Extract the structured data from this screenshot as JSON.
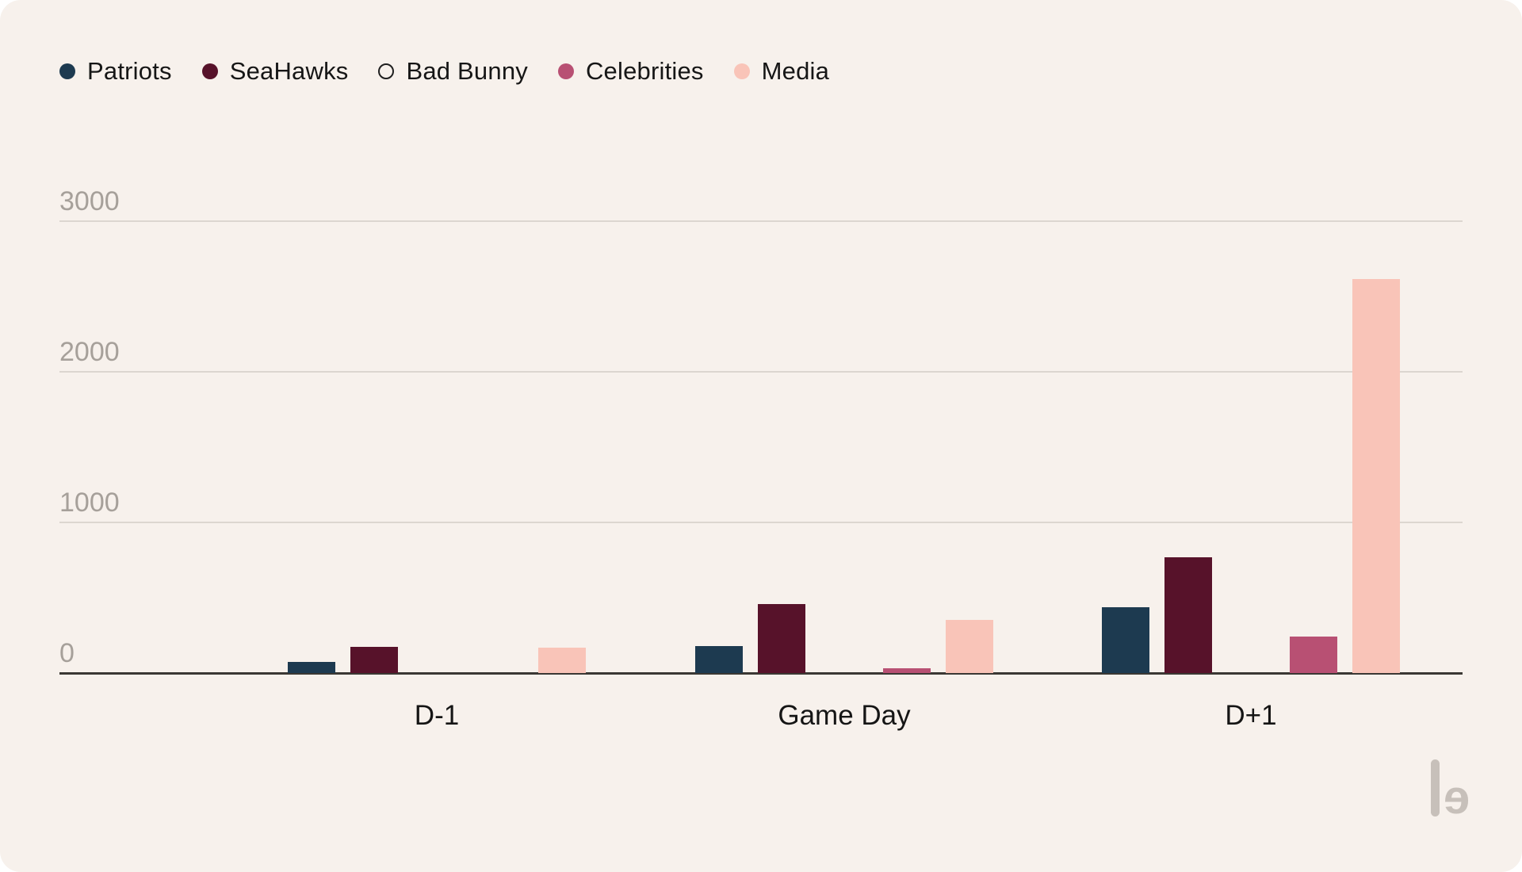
{
  "theme": {
    "background": "#f7f1ec",
    "gridline": "#dcd6d0",
    "axis": "#3b3834",
    "y_tick_color": "#a6a09a",
    "x_label_color": "#151515",
    "legend_text_color": "#161616",
    "logo_color": "#c7c0ba"
  },
  "legend": {
    "items": [
      {
        "label": "Patriots",
        "color": "#1d3a50",
        "marker": "filled"
      },
      {
        "label": "SeaHawks",
        "color": "#57122a",
        "marker": "filled"
      },
      {
        "label": "Bad Bunny",
        "color": "#1f1f1f",
        "marker": "hollow"
      },
      {
        "label": "Celebrities",
        "color": "#b85073",
        "marker": "filled"
      },
      {
        "label": "Media",
        "color": "#f9c4b8",
        "marker": "filled"
      }
    ]
  },
  "chart_data": {
    "type": "bar",
    "categories": [
      "D-1",
      "Game Day",
      "D+1"
    ],
    "series": [
      {
        "name": "Patriots",
        "color": "#1d3a50",
        "hidden": false,
        "values": [
          75,
          180,
          435
        ]
      },
      {
        "name": "SeaHawks",
        "color": "#57122a",
        "hidden": false,
        "values": [
          175,
          460,
          770
        ]
      },
      {
        "name": "Bad Bunny",
        "color": null,
        "hidden": true,
        "values": [
          null,
          null,
          null
        ]
      },
      {
        "name": "Celebrities",
        "color": "#b85073",
        "hidden": false,
        "values": [
          0,
          30,
          240
        ]
      },
      {
        "name": "Media",
        "color": "#f9c4b8",
        "hidden": false,
        "values": [
          170,
          350,
          2615
        ]
      }
    ],
    "y_ticks": [
      0,
      1000,
      2000,
      3000
    ],
    "ylim": [
      0,
      3000
    ],
    "grid": "horizontal",
    "legend_position": "top-left"
  },
  "logo": {
    "glyph": "e"
  }
}
